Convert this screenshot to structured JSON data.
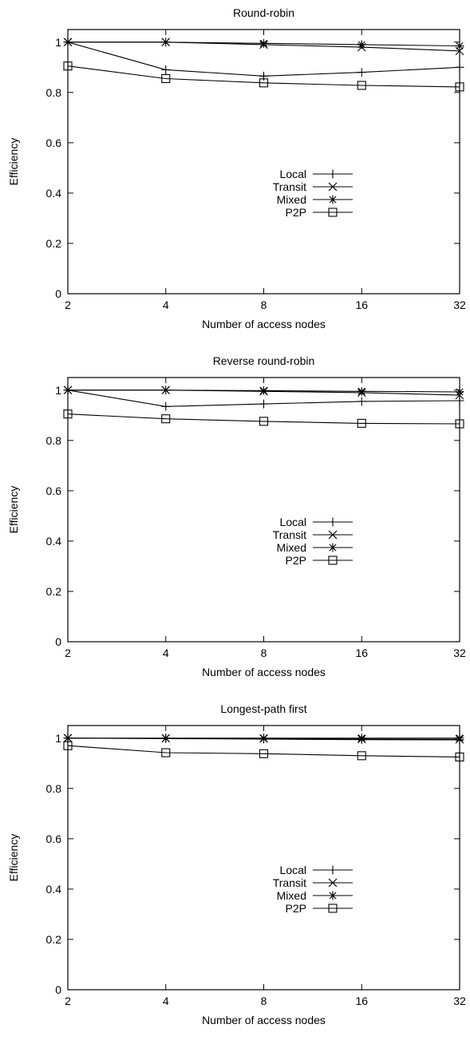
{
  "chart_data": [
    {
      "type": "line",
      "title": "Round-robin",
      "xlabel": "Number of access nodes",
      "ylabel": "Efficiency",
      "x": [
        2,
        4,
        8,
        16,
        32
      ],
      "x_scale": "log2",
      "x_ticks": [
        "2",
        "4",
        "8",
        "16",
        "32"
      ],
      "ylim": [
        0,
        1.05
      ],
      "y_ticks": [
        "0",
        "0.2",
        "0.4",
        "0.6",
        "0.8",
        "1"
      ],
      "grid": false,
      "legend_position": "center-right",
      "series": [
        {
          "name": "Local",
          "marker": "plus",
          "values": [
            1.0,
            0.89,
            0.865,
            0.88,
            0.9
          ]
        },
        {
          "name": "Transit",
          "marker": "cross",
          "values": [
            1.0,
            1.0,
            0.99,
            0.98,
            0.965
          ]
        },
        {
          "name": "Mixed",
          "marker": "star",
          "values": [
            1.0,
            1.0,
            0.995,
            0.99,
            0.985
          ]
        },
        {
          "name": "P2P",
          "marker": "square",
          "values": [
            0.905,
            0.855,
            0.838,
            0.828,
            0.822
          ]
        }
      ]
    },
    {
      "type": "line",
      "title": "Reverse round-robin",
      "xlabel": "Number of access nodes",
      "ylabel": "Efficiency",
      "x": [
        2,
        4,
        8,
        16,
        32
      ],
      "x_scale": "log2",
      "x_ticks": [
        "2",
        "4",
        "8",
        "16",
        "32"
      ],
      "ylim": [
        0,
        1.05
      ],
      "y_ticks": [
        "0",
        "0.2",
        "0.4",
        "0.6",
        "0.8",
        "1"
      ],
      "grid": false,
      "legend_position": "center-right",
      "series": [
        {
          "name": "Local",
          "marker": "plus",
          "values": [
            1.0,
            0.935,
            0.945,
            0.955,
            0.958
          ]
        },
        {
          "name": "Transit",
          "marker": "cross",
          "values": [
            1.0,
            1.0,
            0.995,
            0.99,
            0.98
          ]
        },
        {
          "name": "Mixed",
          "marker": "star",
          "values": [
            1.0,
            1.0,
            0.998,
            0.995,
            0.993
          ]
        },
        {
          "name": "P2P",
          "marker": "square",
          "values": [
            0.905,
            0.886,
            0.876,
            0.868,
            0.866
          ]
        }
      ]
    },
    {
      "type": "line",
      "title": "Longest-path first",
      "xlabel": "Number of access nodes",
      "ylabel": "Efficiency",
      "x": [
        2,
        4,
        8,
        16,
        32
      ],
      "x_scale": "log2",
      "x_ticks": [
        "2",
        "4",
        "8",
        "16",
        "32"
      ],
      "ylim": [
        0,
        1.05
      ],
      "y_ticks": [
        "0",
        "0.2",
        "0.4",
        "0.6",
        "0.8",
        "1"
      ],
      "grid": false,
      "legend_position": "center-right",
      "series": [
        {
          "name": "Local",
          "marker": "plus",
          "values": [
            1.0,
            0.998,
            0.996,
            0.994,
            0.993
          ]
        },
        {
          "name": "Transit",
          "marker": "cross",
          "values": [
            1.0,
            0.999,
            0.998,
            0.996,
            0.995
          ]
        },
        {
          "name": "Mixed",
          "marker": "star",
          "values": [
            1.0,
            1.0,
            1.0,
            1.0,
            1.0
          ]
        },
        {
          "name": "P2P",
          "marker": "square",
          "values": [
            0.97,
            0.942,
            0.938,
            0.93,
            0.925
          ]
        }
      ]
    }
  ]
}
